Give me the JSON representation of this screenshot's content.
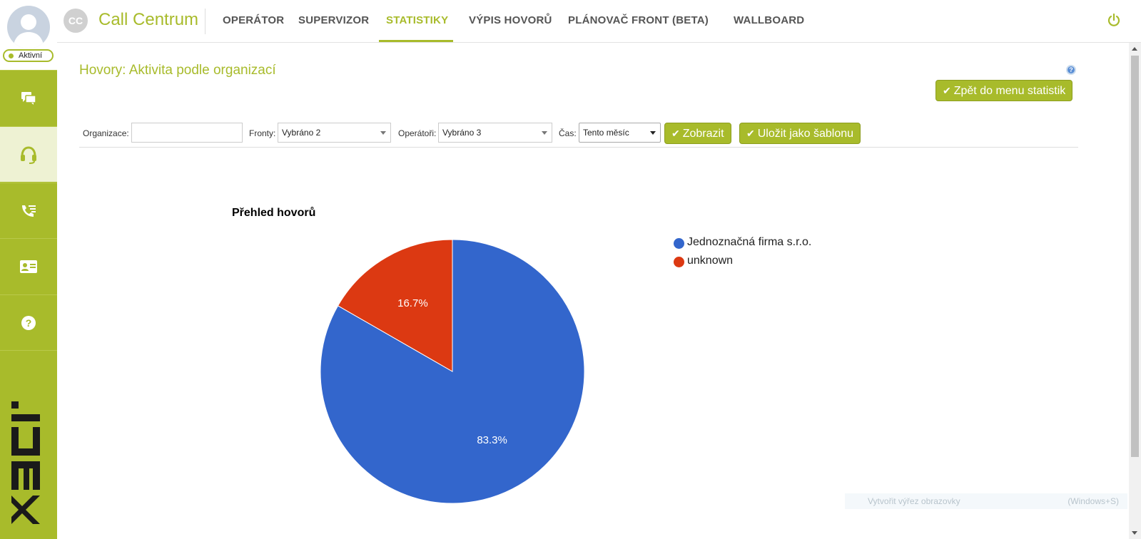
{
  "sidebar": {
    "status": "Aktivní",
    "items": [
      {
        "icon": "chat-icon"
      },
      {
        "icon": "headset-icon",
        "active": true
      },
      {
        "icon": "call-list-icon"
      },
      {
        "icon": "contact-card-icon"
      },
      {
        "icon": "help-icon"
      }
    ],
    "brand": "ipex"
  },
  "header": {
    "avatar_initials": "CC",
    "app_title": "Call Centrum",
    "tabs": [
      {
        "label": "OPERÁTOR"
      },
      {
        "label": "SUPERVIZOR"
      },
      {
        "label": "STATISTIKY",
        "active": true
      },
      {
        "label": "VÝPIS HOVORŮ"
      },
      {
        "label": "PLÁNOVAČ FRONT (BETA)"
      },
      {
        "label": "WALLBOARD"
      }
    ]
  },
  "page": {
    "title": "Hovory: Aktivita podle organizací",
    "back_button": "Zpět do menu statistik"
  },
  "filters": {
    "organization_label": "Organizace:",
    "organization_value": "",
    "queues_label": "Fronty:",
    "queues_value": "Vybráno 2",
    "operators_label": "Operátoři:",
    "operators_value": "Vybráno 3",
    "time_label": "Čas:",
    "time_value": "Tento měsíc",
    "show_button": "Zobrazit",
    "save_button": "Uložit jako šablonu"
  },
  "chart_data": {
    "type": "pie",
    "title": "Přehled hovorů",
    "categories": [
      "Jednoznačná firma s.r.o.",
      "unknown"
    ],
    "values": [
      83.3,
      16.7
    ],
    "labels": [
      "83.3%",
      "16.7%"
    ],
    "colors": [
      "#3366cc",
      "#dc3912"
    ],
    "legend_position": "right"
  },
  "overlay": {
    "tooltip_text": "Vytvořit výřez obrazovky",
    "tooltip_shortcut": "(Windows+S)"
  },
  "colors": {
    "accent": "#a8bb2b",
    "nav_text": "#555555"
  }
}
